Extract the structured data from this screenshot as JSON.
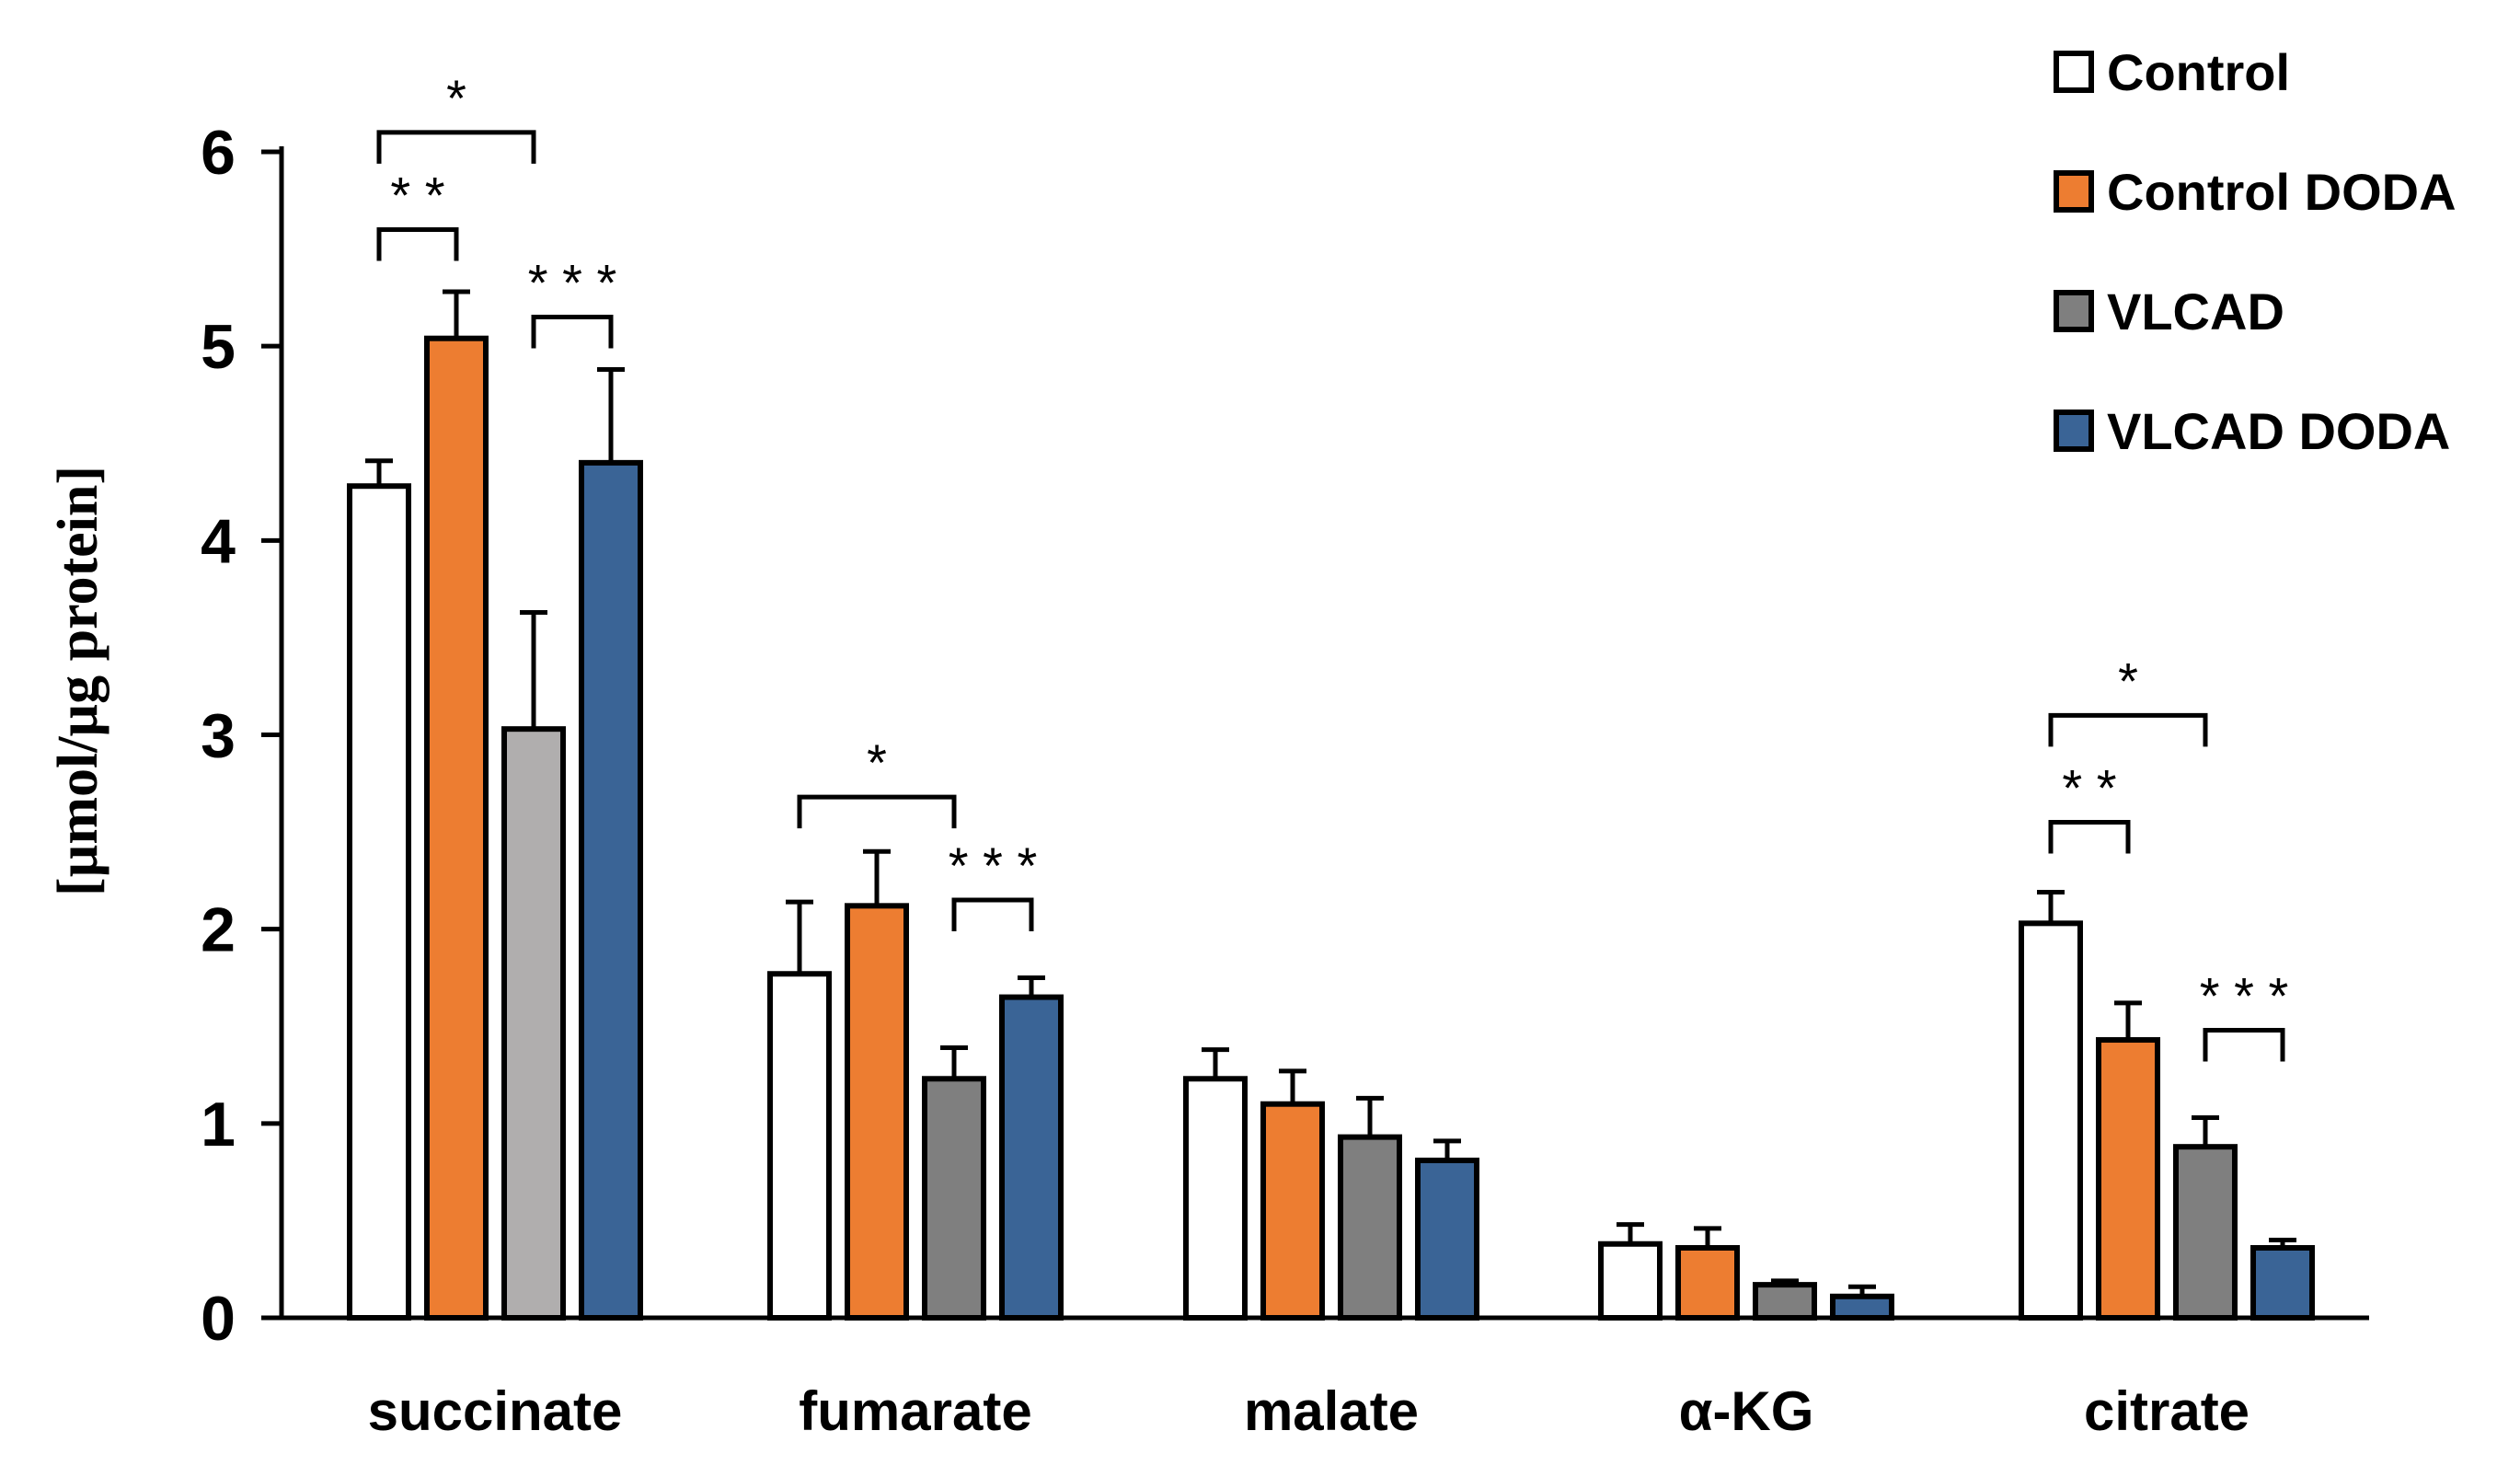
{
  "chart_data": {
    "type": "bar",
    "title": "",
    "xlabel": "",
    "ylabel": "[µmol/µg protein]",
    "ylim": [
      0,
      6
    ],
    "yticks": [
      0,
      1,
      2,
      3,
      4,
      5,
      6
    ],
    "grid": false,
    "legend_position": "top-right",
    "categories": [
      "succinate",
      "fumarate",
      "malate",
      "α-KG",
      "citrate"
    ],
    "series": [
      {
        "name": "Control",
        "color": "#ffffff",
        "values": [
          4.28,
          1.77,
          1.23,
          0.38,
          2.03
        ],
        "errors": [
          0.13,
          0.37,
          0.15,
          0.1,
          0.16
        ]
      },
      {
        "name": "Control DODA",
        "color": "#ed7d31",
        "values": [
          5.04,
          2.12,
          1.1,
          0.36,
          1.43
        ],
        "errors": [
          0.24,
          0.28,
          0.17,
          0.1,
          0.19
        ]
      },
      {
        "name": "VLCAD",
        "color": "#7f7f7f",
        "values": [
          3.03,
          1.23,
          0.93,
          0.17,
          0.88
        ],
        "errors": [
          0.6,
          0.16,
          0.2,
          0.02,
          0.15
        ]
      },
      {
        "name": "VLCAD DODA",
        "color": "#3a6496",
        "values": [
          4.4,
          1.65,
          0.81,
          0.11,
          0.36
        ],
        "errors": [
          0.48,
          0.1,
          0.1,
          0.05,
          0.04
        ]
      }
    ],
    "bar_overrides": [
      {
        "series": 2,
        "category": 0,
        "color": "#b0aeae"
      }
    ],
    "significance": [
      {
        "category": 0,
        "from": 0,
        "to": 2,
        "y": 6.1,
        "label": "*"
      },
      {
        "category": 0,
        "from": 0,
        "to": 1,
        "y": 5.6,
        "label": "* *"
      },
      {
        "category": 0,
        "from": 2,
        "to": 3,
        "y": 5.15,
        "label": "* * *"
      },
      {
        "category": 1,
        "from": 0,
        "to": 2,
        "y": 2.68,
        "label": "*"
      },
      {
        "category": 1,
        "from": 2,
        "to": 3,
        "y": 2.15,
        "label": "* * *"
      },
      {
        "category": 4,
        "from": 0,
        "to": 2,
        "y": 3.1,
        "label": "*"
      },
      {
        "category": 4,
        "from": 0,
        "to": 1,
        "y": 2.55,
        "label": "* *"
      },
      {
        "category": 4,
        "from": 2,
        "to": 3,
        "y": 1.48,
        "label": "* * *"
      }
    ]
  }
}
